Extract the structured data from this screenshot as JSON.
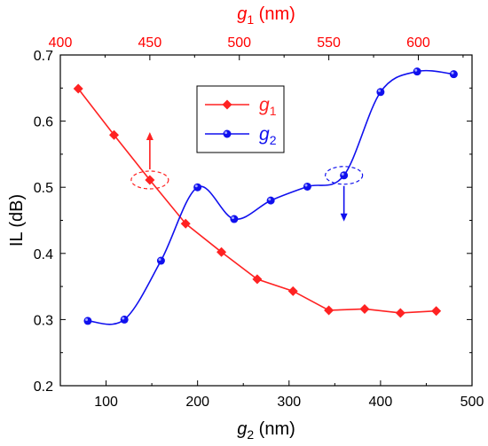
{
  "chart_data": {
    "type": "line",
    "ylabel": "IL (dB)",
    "ylim": [
      0.2,
      0.7
    ],
    "yticks": [
      "0.2",
      "0.3",
      "0.4",
      "0.5",
      "0.6",
      "0.7"
    ],
    "bottom_axis": {
      "label_var": "g",
      "label_sub": "2",
      "label_unit": " (nm)",
      "range": [
        50,
        500
      ],
      "ticks": [
        "100",
        "200",
        "300",
        "400",
        "500"
      ],
      "color": "#000000"
    },
    "top_axis": {
      "label_var": "g",
      "label_sub": "1",
      "label_unit": " (nm)",
      "range": [
        400,
        630
      ],
      "ticks": [
        "400",
        "450",
        "500",
        "550",
        "600"
      ],
      "color": "#ff0000"
    },
    "series": [
      {
        "name_var": "g",
        "name_sub": "1",
        "axis": "top",
        "color": "#ff2222",
        "marker": "diamond",
        "x": [
          410,
          430,
          450,
          470,
          490,
          510,
          530,
          550,
          570,
          590,
          610
        ],
        "y": [
          0.649,
          0.579,
          0.511,
          0.445,
          0.402,
          0.361,
          0.343,
          0.314,
          0.316,
          0.31,
          0.313
        ]
      },
      {
        "name_var": "g",
        "name_sub": "2",
        "axis": "bottom",
        "color": "#1010ee",
        "marker": "circle",
        "x": [
          80,
          120,
          160,
          200,
          240,
          280,
          320,
          360,
          400,
          440,
          480
        ],
        "y": [
          0.298,
          0.3,
          0.389,
          0.5,
          0.452,
          0.48,
          0.501,
          0.518,
          0.644,
          0.675,
          0.671
        ]
      }
    ],
    "annotations": [
      {
        "series": 0,
        "point_index": 2,
        "arrow": "up"
      },
      {
        "series": 1,
        "point_index": 7,
        "arrow": "down"
      }
    ]
  }
}
